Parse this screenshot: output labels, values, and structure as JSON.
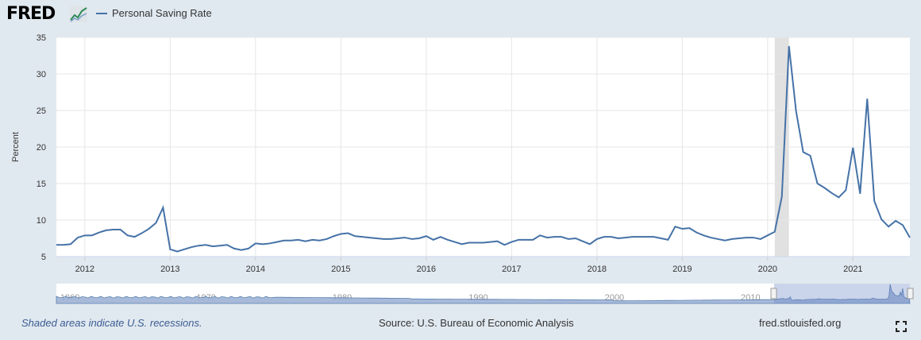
{
  "header": {
    "logo_text": "FRED",
    "logo_icon": "chart-line-icon"
  },
  "footer": {
    "recession_note": "Shaded areas indicate U.S. recessions.",
    "source": "Source: U.S. Bureau of Economic Analysis",
    "site": "fred.stlouisfed.org",
    "fullscreen_icon": "fullscreen-icon"
  },
  "colors": {
    "series": "#4572a7",
    "recession": "#e1e1e1",
    "background": "#e1e9f0",
    "navigator_fill": "#9fb3d6"
  },
  "chart_data": {
    "type": "line",
    "title": "",
    "xlabel": "",
    "ylabel": "Percent",
    "xlim": [
      "2011-09",
      "2021-09"
    ],
    "ylim": [
      5,
      35
    ],
    "yticks": [
      5,
      10,
      15,
      20,
      25,
      30,
      35
    ],
    "xticks": [
      "2012",
      "2013",
      "2014",
      "2015",
      "2016",
      "2017",
      "2018",
      "2019",
      "2020",
      "2021"
    ],
    "navigator_ticks": [
      "1960",
      "1970",
      "1980",
      "1990",
      "2000",
      "2010"
    ],
    "grid": true,
    "legend_position": "top-left",
    "recessions": [
      {
        "start": "2020-02",
        "end": "2020-04"
      }
    ],
    "series": [
      {
        "name": "Personal Saving Rate",
        "x": [
          "2011-09",
          "2011-10",
          "2011-11",
          "2011-12",
          "2012-01",
          "2012-02",
          "2012-03",
          "2012-04",
          "2012-05",
          "2012-06",
          "2012-07",
          "2012-08",
          "2012-09",
          "2012-10",
          "2012-11",
          "2012-12",
          "2013-01",
          "2013-02",
          "2013-03",
          "2013-04",
          "2013-05",
          "2013-06",
          "2013-07",
          "2013-08",
          "2013-09",
          "2013-10",
          "2013-11",
          "2013-12",
          "2014-01",
          "2014-02",
          "2014-03",
          "2014-04",
          "2014-05",
          "2014-06",
          "2014-07",
          "2014-08",
          "2014-09",
          "2014-10",
          "2014-11",
          "2014-12",
          "2015-01",
          "2015-02",
          "2015-03",
          "2015-04",
          "2015-05",
          "2015-06",
          "2015-07",
          "2015-08",
          "2015-09",
          "2015-10",
          "2015-11",
          "2015-12",
          "2016-01",
          "2016-02",
          "2016-03",
          "2016-04",
          "2016-05",
          "2016-06",
          "2016-07",
          "2016-08",
          "2016-09",
          "2016-10",
          "2016-11",
          "2016-12",
          "2017-01",
          "2017-02",
          "2017-03",
          "2017-04",
          "2017-05",
          "2017-06",
          "2017-07",
          "2017-08",
          "2017-09",
          "2017-10",
          "2017-11",
          "2017-12",
          "2018-01",
          "2018-02",
          "2018-03",
          "2018-04",
          "2018-05",
          "2018-06",
          "2018-07",
          "2018-08",
          "2018-09",
          "2018-10",
          "2018-11",
          "2018-12",
          "2019-01",
          "2019-02",
          "2019-03",
          "2019-04",
          "2019-05",
          "2019-06",
          "2019-07",
          "2019-08",
          "2019-09",
          "2019-10",
          "2019-11",
          "2019-12",
          "2020-01",
          "2020-02",
          "2020-03",
          "2020-04",
          "2020-05",
          "2020-06",
          "2020-07",
          "2020-08",
          "2020-09",
          "2020-10",
          "2020-11",
          "2020-12",
          "2021-01",
          "2021-02",
          "2021-03",
          "2021-04",
          "2021-05",
          "2021-06",
          "2021-07",
          "2021-08",
          "2021-09"
        ],
        "values": [
          6.6,
          6.6,
          6.7,
          7.6,
          7.9,
          7.9,
          8.3,
          8.6,
          8.7,
          8.7,
          7.9,
          7.7,
          8.2,
          8.8,
          9.6,
          11.7,
          6.0,
          5.7,
          6.0,
          6.3,
          6.5,
          6.6,
          6.4,
          6.5,
          6.6,
          6.1,
          5.9,
          6.1,
          6.8,
          6.7,
          6.8,
          7.0,
          7.2,
          7.2,
          7.3,
          7.1,
          7.3,
          7.2,
          7.4,
          7.8,
          8.1,
          8.2,
          7.8,
          7.7,
          7.6,
          7.5,
          7.4,
          7.4,
          7.5,
          7.6,
          7.4,
          7.5,
          7.8,
          7.3,
          7.7,
          7.3,
          7.0,
          6.7,
          6.9,
          6.9,
          6.9,
          7.0,
          7.1,
          6.6,
          7.0,
          7.3,
          7.3,
          7.3,
          7.9,
          7.6,
          7.7,
          7.7,
          7.4,
          7.5,
          7.1,
          6.7,
          7.4,
          7.7,
          7.7,
          7.5,
          7.6,
          7.7,
          7.7,
          7.7,
          7.7,
          7.5,
          7.3,
          9.1,
          8.8,
          8.9,
          8.3,
          7.9,
          7.6,
          7.4,
          7.2,
          7.4,
          7.5,
          7.6,
          7.6,
          7.4,
          7.9,
          8.4,
          13.2,
          33.8,
          24.9,
          19.3,
          18.8,
          15.0,
          14.4,
          13.7,
          13.1,
          14.1,
          19.9,
          13.6,
          26.6,
          12.6,
          10.1,
          9.1,
          9.9,
          9.3,
          7.6
        ]
      }
    ]
  }
}
